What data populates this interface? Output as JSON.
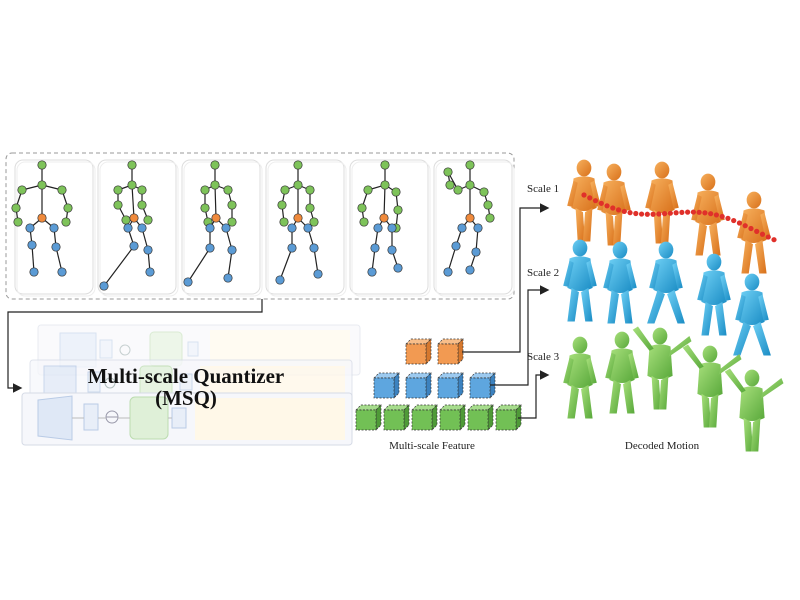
{
  "diagram": {
    "quantizer_title": "Multi-scale Quantizer",
    "quantizer_subtitle": "(MSQ)",
    "feature_caption": "Multi-scale Feature",
    "motion_caption": "Decoded Motion",
    "scales": [
      "Scale 1",
      "Scale 2",
      "Scale 3"
    ]
  },
  "colors": {
    "skeleton_joint": "#7ec35a",
    "skeleton_root": "#f08a3c",
    "skeleton_leg": "#5b9bd5",
    "scale1": "#f08a2a",
    "scale2": "#2aa8dc",
    "scale3": "#78c850",
    "trajectory": "#e0302a"
  }
}
